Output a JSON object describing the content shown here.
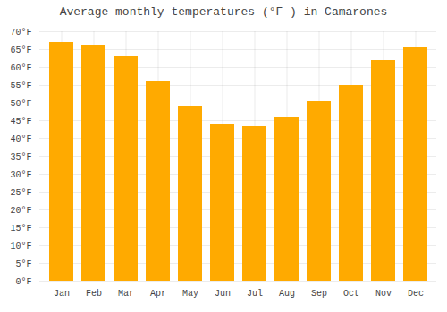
{
  "chart_data": {
    "type": "bar",
    "title": "Average monthly temperatures (°F ) in Camarones",
    "categories": [
      "Jan",
      "Feb",
      "Mar",
      "Apr",
      "May",
      "Jun",
      "Jul",
      "Aug",
      "Sep",
      "Oct",
      "Nov",
      "Dec"
    ],
    "values": [
      67,
      66,
      63,
      56,
      49,
      44,
      43.5,
      46,
      50.5,
      55,
      62,
      65.5
    ],
    "color": "#FFAA00",
    "ylim": [
      0,
      70
    ],
    "yticks": [
      {
        "value": 0,
        "label": "0°F"
      },
      {
        "value": 5,
        "label": "5°F"
      },
      {
        "value": 10,
        "label": "10°F"
      },
      {
        "value": 15,
        "label": "15°F"
      },
      {
        "value": 20,
        "label": "20°F"
      },
      {
        "value": 25,
        "label": "25°F"
      },
      {
        "value": 30,
        "label": "30°F"
      },
      {
        "value": 35,
        "label": "35°F"
      },
      {
        "value": 40,
        "label": "40°F"
      },
      {
        "value": 45,
        "label": "45°F"
      },
      {
        "value": 50,
        "label": "50°F"
      },
      {
        "value": 55,
        "label": "55°F"
      },
      {
        "value": 60,
        "label": "60°F"
      },
      {
        "value": 65,
        "label": "65°F"
      },
      {
        "value": 70,
        "label": "70°F"
      }
    ],
    "grid": true
  }
}
